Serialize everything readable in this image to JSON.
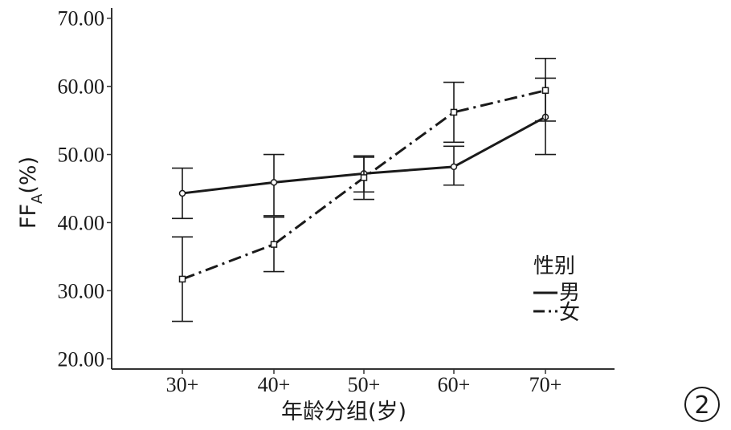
{
  "chart_data": {
    "type": "line",
    "categories": [
      "30+",
      "40+",
      "50+",
      "60+",
      "70+"
    ],
    "xlabel": "年龄分组(岁)",
    "ylabel_main": "FF",
    "ylabel_sub": "A",
    "ylabel_suffix": "(%)",
    "ylim": [
      18.5,
      71.5
    ],
    "yticks": [
      "20.00",
      "30.00",
      "40.00",
      "50.00",
      "60.00",
      "70.00"
    ],
    "ytick_values": [
      20,
      30,
      40,
      50,
      60,
      70
    ],
    "grid": false,
    "legend": {
      "title": "性别",
      "position": "right"
    },
    "series": [
      {
        "name": "男",
        "style": "solid",
        "marker": "circle",
        "color": "#1a1a1a",
        "values": [
          44.3,
          45.9,
          47.2,
          48.2,
          55.5
        ],
        "error_low": [
          40.6,
          41.0,
          44.5,
          45.5,
          50.0
        ],
        "error_high": [
          48.0,
          50.0,
          49.8,
          51.2,
          61.2
        ]
      },
      {
        "name": "女",
        "style": "dashdot",
        "marker": "square",
        "color": "#1a1a1a",
        "values": [
          31.7,
          36.8,
          46.6,
          56.2,
          59.4
        ],
        "error_low": [
          25.5,
          32.8,
          43.4,
          51.8,
          54.9
        ],
        "error_high": [
          37.9,
          40.8,
          49.6,
          60.6,
          64.1
        ]
      }
    ]
  },
  "badge": "②"
}
